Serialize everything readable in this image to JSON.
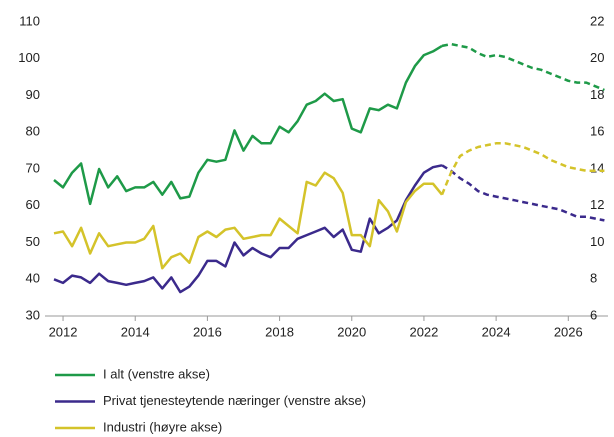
{
  "chart_data": {
    "type": "line",
    "x": [
      2011.75,
      2012,
      2012.25,
      2012.5,
      2012.75,
      2013,
      2013.25,
      2013.5,
      2013.75,
      2014,
      2014.25,
      2014.5,
      2014.75,
      2015,
      2015.25,
      2015.5,
      2015.75,
      2016,
      2016.25,
      2016.5,
      2016.75,
      2017,
      2017.25,
      2017.5,
      2017.75,
      2018,
      2018.25,
      2018.5,
      2018.75,
      2019,
      2019.25,
      2019.5,
      2019.75,
      2020,
      2020.25,
      2020.5,
      2020.75,
      2021,
      2021.25,
      2021.5,
      2021.75,
      2022,
      2022.25,
      2022.5,
      2022.75,
      2023,
      2023.25,
      2023.5,
      2023.75,
      2024,
      2024.25,
      2024.5,
      2024.75,
      2025,
      2025.25,
      2025.5,
      2025.75,
      2026,
      2026.25,
      2026.5,
      2026.75,
      2027
    ],
    "xlim": [
      2011.5,
      2027.1
    ],
    "xticks": [
      2012,
      2014,
      2016,
      2018,
      2020,
      2022,
      2024,
      2026
    ],
    "ylim": [
      30,
      110
    ],
    "yticks": [
      30,
      40,
      50,
      60,
      70,
      80,
      90,
      100,
      110
    ],
    "y2lim": [
      6,
      22
    ],
    "y2ticks": [
      6,
      8,
      10,
      12,
      14,
      16,
      18,
      20,
      22
    ],
    "dashed_from": 2022.5,
    "series": [
      {
        "name": "I alt (venstre akse)",
        "color": "#1e9a48",
        "values": [
          67,
          65,
          69,
          71.5,
          60.5,
          70,
          65,
          68,
          64,
          65,
          65,
          66.5,
          63,
          66.5,
          62,
          62.5,
          69,
          72.5,
          72,
          72.5,
          80.5,
          75,
          79,
          77,
          77,
          81.5,
          80,
          83,
          87.5,
          88.5,
          90.5,
          88.5,
          89,
          81,
          80,
          86.5,
          86,
          87.5,
          86.5,
          93.5,
          98,
          101,
          102,
          103.5,
          104,
          103.5,
          103,
          101.5,
          100.5,
          101,
          100.5,
          99.5,
          98.5,
          97.5,
          97,
          96,
          95,
          94,
          93.5,
          93.5,
          92.5,
          91.5
        ]
      },
      {
        "name": "Privat tjenesteytende næringer (venstre akse)",
        "color": "#3b2a8c",
        "values": [
          40,
          39,
          41,
          40.5,
          39,
          41.5,
          39.5,
          39,
          38.5,
          39,
          39.5,
          40.5,
          37.5,
          40.5,
          36.5,
          38,
          41,
          45,
          45,
          43.5,
          50,
          46.5,
          48.5,
          47,
          46,
          48.5,
          48.5,
          51,
          52,
          53,
          54,
          51.5,
          53.5,
          48,
          47.5,
          56.5,
          52.5,
          54,
          56,
          61.5,
          65.5,
          69,
          70.5,
          71,
          69.5,
          67.5,
          66,
          64,
          63,
          62.5,
          62,
          61.5,
          61,
          60.5,
          60,
          59.5,
          59,
          58,
          57,
          57,
          56.5,
          56
        ]
      },
      {
        "name": "Industri (høyre akse)",
        "color": "#d4c32a",
        "axis": "y2",
        "values": [
          10.5,
          10.6,
          9.8,
          10.8,
          9.4,
          10.5,
          9.8,
          9.9,
          10,
          10,
          10.2,
          10.9,
          8.6,
          9.2,
          9.4,
          8.9,
          10.3,
          10.6,
          10.3,
          10.7,
          10.8,
          10.2,
          10.3,
          10.4,
          10.4,
          11.3,
          10.9,
          10.5,
          13.3,
          13.1,
          13.8,
          13.5,
          12.7,
          10.4,
          10.4,
          9.8,
          12.3,
          11.7,
          10.6,
          12.2,
          12.8,
          13.2,
          13.2,
          12.6,
          13.8,
          14.7,
          15,
          15.2,
          15.3,
          15.4,
          15.4,
          15.3,
          15.2,
          15,
          14.8,
          14.5,
          14.3,
          14.1,
          14,
          13.9,
          13.9,
          13.9
        ]
      }
    ]
  }
}
